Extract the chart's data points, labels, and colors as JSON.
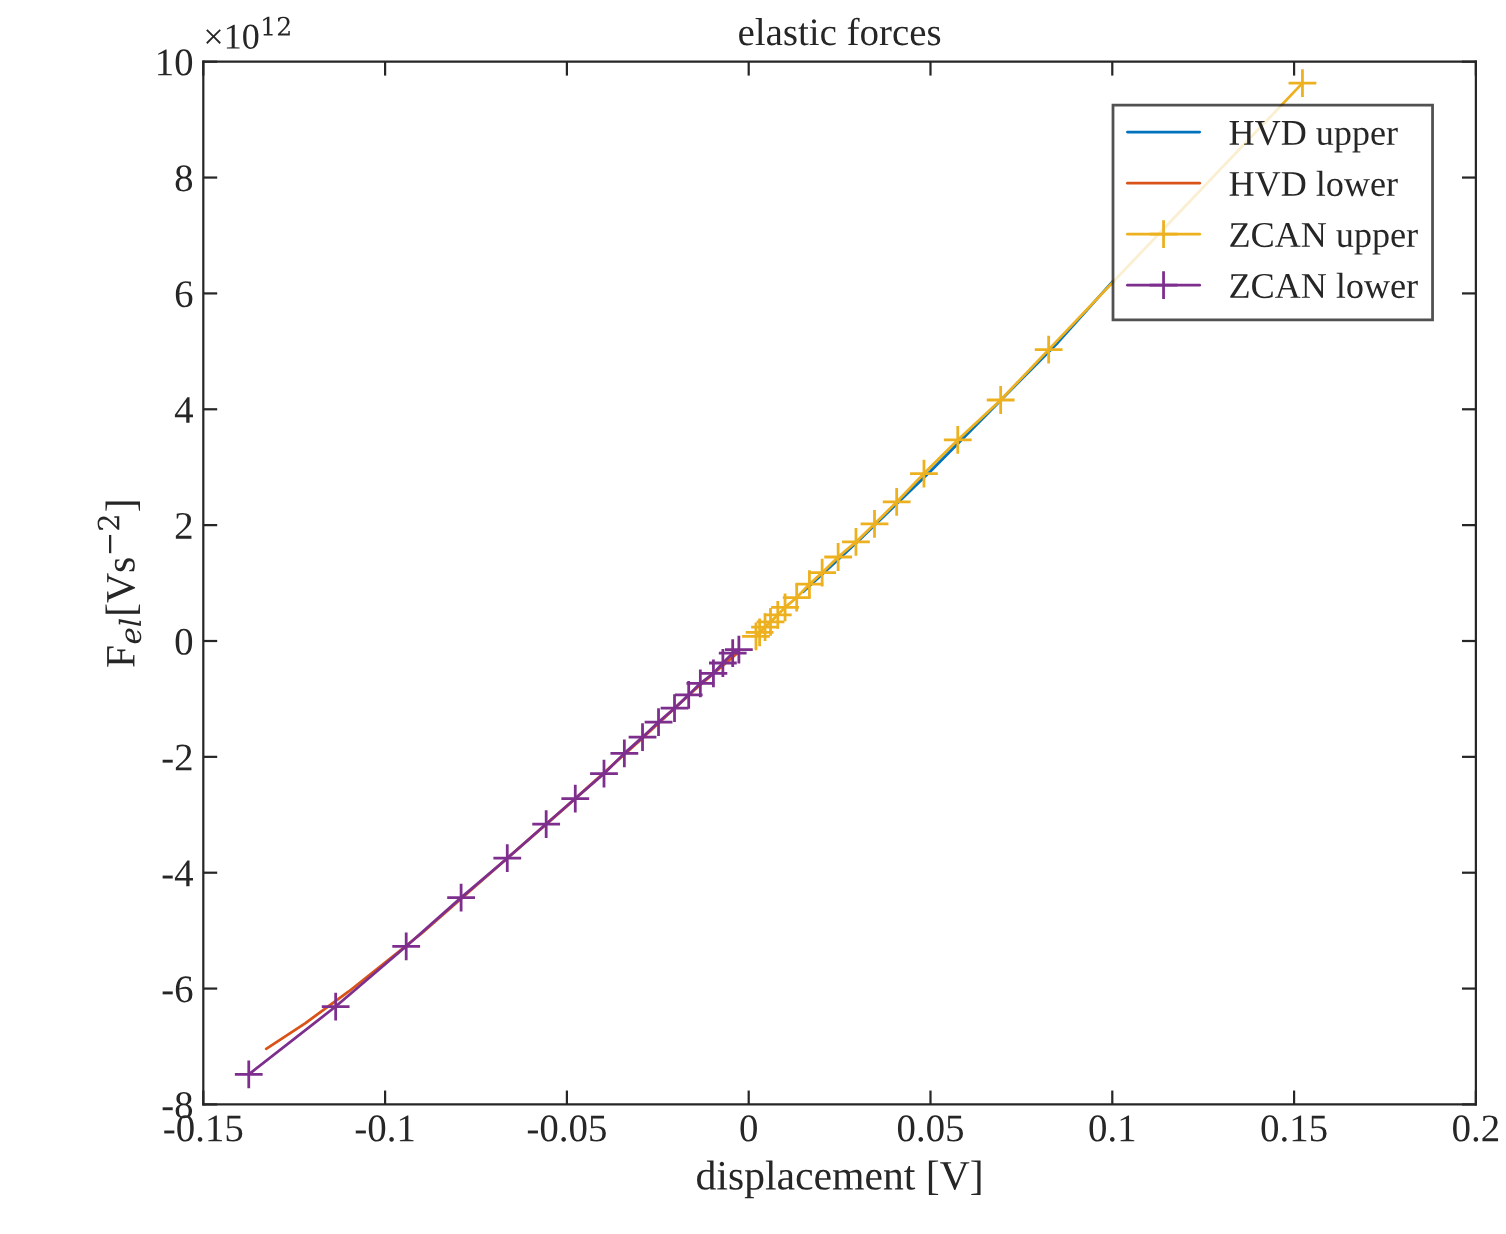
{
  "chart_data": {
    "type": "line",
    "title": "elastic forces",
    "xlabel": "displacement [V]",
    "ylabel": "F$_{el}$[Vs$^{−2}$]",
    "annotations": [
      "×10$^{12}$"
    ],
    "xlim": [
      -0.15,
      0.2
    ],
    "xticks": [
      -0.15,
      -0.1,
      -0.05,
      0,
      0.05,
      0.1,
      0.15,
      0.2
    ],
    "ylim": [
      -8,
      10
    ],
    "yticks": [
      -8,
      -6,
      -4,
      -2,
      0,
      2,
      4,
      6,
      8,
      10
    ],
    "grid": false,
    "legend": "top right",
    "series": [
      {
        "name": "HVD upper",
        "color": "#0072bd",
        "marker": "none",
        "x": [
          0.015,
          0.03,
          0.05,
          0.07,
          0.085,
          0.1
        ],
        "values": [
          0.85,
          1.72,
          2.93,
          4.2,
          5.15,
          6.2
        ]
      },
      {
        "name": "HVD lower",
        "color": "#d95319",
        "marker": "none",
        "x": [
          -0.1327,
          -0.122,
          -0.11,
          -0.09,
          -0.07,
          -0.05,
          -0.03,
          -0.015,
          -0.003
        ],
        "values": [
          -7.04,
          -6.6,
          -6.05,
          -5.05,
          -3.95,
          -2.85,
          -1.72,
          -0.85,
          -0.2
        ]
      },
      {
        "name": "ZCAN upper",
        "color": "#edb120",
        "marker": "cross",
        "x": [
          0.002,
          0.003,
          0.0045,
          0.006,
          0.008,
          0.01,
          0.0132,
          0.0167,
          0.0202,
          0.0246,
          0.0295,
          0.0346,
          0.0407,
          0.0482,
          0.0575,
          0.0693,
          0.0825,
          0.1523
        ],
        "values": [
          0.08,
          0.15,
          0.24,
          0.33,
          0.45,
          0.58,
          0.75,
          0.98,
          1.18,
          1.45,
          1.71,
          2.02,
          2.4,
          2.89,
          3.47,
          4.16,
          5.03,
          9.63
        ]
      },
      {
        "name": "ZCAN lower",
        "color": "#7e2f8e",
        "marker": "cross",
        "x": [
          -0.1375,
          -0.1136,
          -0.0942,
          -0.0791,
          -0.0664,
          -0.0557,
          -0.0477,
          -0.0398,
          -0.0342,
          -0.0292,
          -0.0248,
          -0.0204,
          -0.0165,
          -0.0133,
          -0.0097,
          -0.0071,
          -0.0044,
          -0.0027
        ],
        "values": [
          -7.48,
          -6.31,
          -5.27,
          -4.43,
          -3.75,
          -3.16,
          -2.72,
          -2.29,
          -1.94,
          -1.66,
          -1.4,
          -1.16,
          -0.93,
          -0.73,
          -0.56,
          -0.38,
          -0.21,
          -0.15
        ]
      }
    ]
  }
}
